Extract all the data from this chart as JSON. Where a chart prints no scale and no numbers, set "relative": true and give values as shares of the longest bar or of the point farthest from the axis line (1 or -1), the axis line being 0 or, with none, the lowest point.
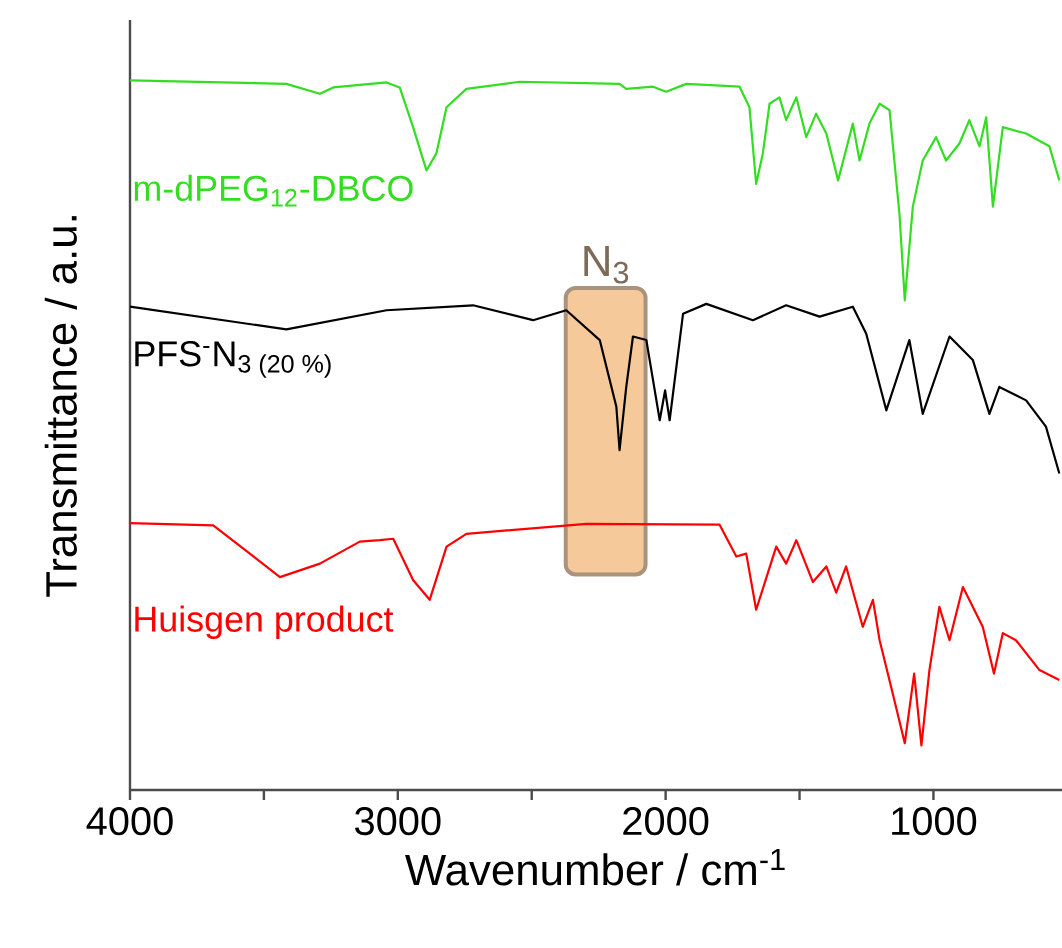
{
  "chart_data": {
    "type": "line",
    "relative": true,
    "xlabel": "Wavenumber / cm$^{-1}$",
    "ylabel": "Transmittance / a.u.",
    "xlim": [
      4000,
      520
    ],
    "xticks": [
      4000,
      {
        "value": 3500,
        "label": null
      },
      3000,
      {
        "value": 2500,
        "label": null
      },
      2000,
      {
        "value": 1500,
        "label": null
      },
      1000
    ],
    "legend": false,
    "bands": [
      {
        "axis": "x",
        "from": 2373,
        "to": 2075,
        "label": "N$_{3}$",
        "color": "#f5c99a"
      }
    ],
    "series": [
      {
        "name": "m-dPEG$_{12}$-DBCO",
        "color": "#33dd22",
        "x": [
          4000,
          3416,
          3291,
          3241,
          3042,
          2993,
          2943,
          2893,
          2856,
          2818,
          2744,
          2545,
          2172,
          2147,
          2047,
          1998,
          1923,
          1724,
          1687,
          1662,
          1637,
          1612,
          1575,
          1550,
          1512,
          1475,
          1438,
          1400,
          1356,
          1301,
          1276,
          1239,
          1201,
          1164,
          1127,
          1107,
          1077,
          1040,
          990,
          953,
          903,
          866,
          828,
          803,
          778,
          741,
          654,
          567,
          530
        ],
        "values": [
          1.0,
          0.995,
          0.981,
          0.99,
          0.997,
          0.99,
          0.934,
          0.873,
          0.897,
          0.962,
          0.988,
          0.998,
          0.995,
          0.988,
          0.991,
          0.984,
          0.995,
          0.991,
          0.962,
          0.854,
          0.897,
          0.967,
          0.976,
          0.944,
          0.976,
          0.92,
          0.953,
          0.925,
          0.859,
          0.939,
          0.887,
          0.939,
          0.967,
          0.958,
          0.812,
          0.69,
          0.822,
          0.887,
          0.92,
          0.887,
          0.911,
          0.944,
          0.907,
          0.948,
          0.822,
          0.934,
          0.925,
          0.907,
          0.859
        ]
      },
      {
        "name": "PFS$^{-}$N$_{3 (20 %)}$",
        "color": "#000000",
        "x": [
          4000,
          3416,
          3042,
          2719,
          2495,
          2371,
          2246,
          2184,
          2172,
          2147,
          2122,
          2072,
          2022,
          2002,
          1985,
          1935,
          1848,
          1674,
          1550,
          1425,
          1301,
          1251,
          1176,
          1090,
          1040,
          940,
          853,
          791,
          754,
          654,
          580,
          530
        ],
        "values": [
          0.681,
          0.649,
          0.676,
          0.683,
          0.662,
          0.676,
          0.634,
          0.54,
          0.479,
          0.568,
          0.639,
          0.634,
          0.521,
          0.563,
          0.521,
          0.671,
          0.685,
          0.662,
          0.683,
          0.667,
          0.681,
          0.643,
          0.535,
          0.634,
          0.53,
          0.639,
          0.606,
          0.53,
          0.568,
          0.549,
          0.512,
          0.446
        ]
      },
      {
        "name": "Huisgen product",
        "color": "#ff0000",
        "x": [
          4000,
          3689,
          3440,
          3291,
          3142,
          3067,
          3017,
          2943,
          2881,
          2818,
          2744,
          2296,
          1799,
          1736,
          1699,
          1662,
          1587,
          1550,
          1512,
          1450,
          1400,
          1363,
          1326,
          1264,
          1226,
          1201,
          1152,
          1107,
          1072,
          1045,
          1015,
          978,
          940,
          890,
          816,
          774,
          741,
          692,
          604,
          530
        ],
        "values": [
          0.376,
          0.373,
          0.3,
          0.319,
          0.35,
          0.352,
          0.354,
          0.296,
          0.268,
          0.343,
          0.361,
          0.375,
          0.374,
          0.329,
          0.333,
          0.254,
          0.343,
          0.319,
          0.352,
          0.293,
          0.315,
          0.278,
          0.315,
          0.23,
          0.268,
          0.211,
          0.136,
          0.066,
          0.164,
          0.063,
          0.169,
          0.258,
          0.211,
          0.286,
          0.23,
          0.164,
          0.221,
          0.211,
          0.169,
          0.155
        ]
      }
    ]
  }
}
